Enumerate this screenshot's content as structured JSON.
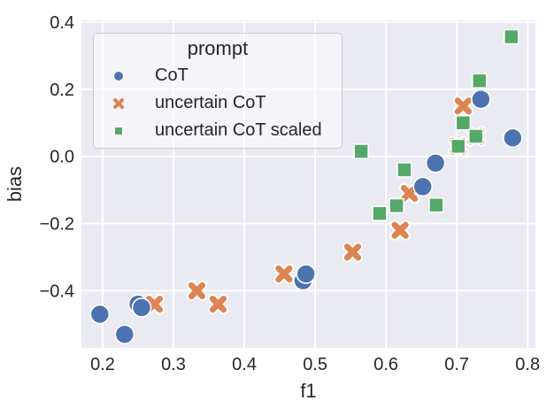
{
  "figure": {
    "background": "#ffffff",
    "plot_background": "#eaeaf2",
    "grid_color": "#ffffff",
    "text_color": "#262626",
    "legend_border": "#cccccc"
  },
  "chart_data": {
    "type": "scatter",
    "title": "",
    "xlabel": "f1",
    "ylabel": "bias",
    "xlim": [
      0.17,
      0.811
    ],
    "ylim": [
      -0.57,
      0.405
    ],
    "xticks": [
      0.2,
      0.3,
      0.4,
      0.5,
      0.6,
      0.7,
      0.8
    ],
    "xtick_labels": [
      "0.2",
      "0.3",
      "0.4",
      "0.5",
      "0.6",
      "0.7",
      "0.8"
    ],
    "yticks": [
      0.4,
      0.2,
      0,
      -0.2,
      -0.4
    ],
    "ytick_labels": [
      "0.4",
      "0.2",
      "0.0",
      "−0.2",
      "−0.4"
    ],
    "grid": true,
    "legend": {
      "title": "prompt",
      "position": "upper-left"
    },
    "series": [
      {
        "name": "CoT",
        "marker": "circle",
        "color": "#4c72b0",
        "z": 2,
        "points": [
          [
            0.196,
            -0.47
          ],
          [
            0.231,
            -0.53
          ],
          [
            0.25,
            -0.44
          ],
          [
            0.255,
            -0.45
          ],
          [
            0.483,
            -0.37
          ],
          [
            0.487,
            -0.35
          ],
          [
            0.652,
            -0.09
          ],
          [
            0.67,
            -0.02
          ],
          [
            0.734,
            0.17
          ],
          [
            0.779,
            0.055
          ]
        ]
      },
      {
        "name": "uncertain CoT",
        "marker": "x",
        "color": "#dd8452",
        "z": 1,
        "points": [
          [
            0.273,
            -0.44
          ],
          [
            0.333,
            -0.4
          ],
          [
            0.363,
            -0.44
          ],
          [
            0.456,
            -0.35
          ],
          [
            0.553,
            -0.285
          ],
          [
            0.62,
            -0.22
          ],
          [
            0.633,
            -0.11
          ],
          [
            0.702,
            0.03
          ],
          [
            0.727,
            0.06
          ],
          [
            0.709,
            0.15
          ]
        ]
      },
      {
        "name": "uncertain CoT scaled",
        "marker": "square",
        "color": "#55a868",
        "z": 3,
        "points": [
          [
            0.565,
            0.015
          ],
          [
            0.591,
            -0.17
          ],
          [
            0.615,
            -0.147
          ],
          [
            0.626,
            -0.04
          ],
          [
            0.671,
            -0.145
          ],
          [
            0.702,
            0.03
          ],
          [
            0.709,
            0.1
          ],
          [
            0.727,
            0.06
          ],
          [
            0.732,
            0.225
          ],
          [
            0.777,
            0.356
          ]
        ]
      }
    ]
  }
}
